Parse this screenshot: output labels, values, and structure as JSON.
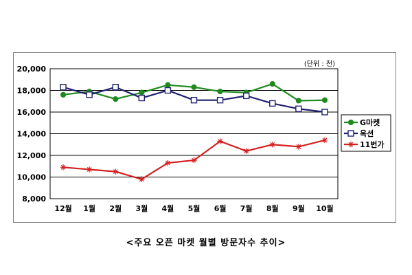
{
  "caption": "<주요 오픈 마켓 월별 방문자수 추이>",
  "chart_data": {
    "type": "line",
    "unit_note": "(단위 : 천)",
    "categories": [
      "12월",
      "1월",
      "2월",
      "3월",
      "4월",
      "5월",
      "6월",
      "7월",
      "8월",
      "9월",
      "10월"
    ],
    "ylim": [
      8000,
      20000
    ],
    "yticks": [
      8000,
      10000,
      12000,
      14000,
      16000,
      18000,
      20000
    ],
    "ytick_labels": [
      "8,000",
      "10,000",
      "12,000",
      "14,000",
      "16,000",
      "18,000",
      "20,000"
    ],
    "grid": true,
    "legend_position": "right",
    "series": [
      {
        "name": "G마켓",
        "color": "#1e8a1e",
        "marker": "filled-circle",
        "values": [
          17600,
          17900,
          17200,
          17800,
          18500,
          18300,
          17900,
          17800,
          18600,
          17050,
          17100
        ]
      },
      {
        "name": "옥션",
        "color": "#1f1f6e",
        "marker": "hollow-square",
        "values": [
          18300,
          17600,
          18300,
          17300,
          18000,
          17100,
          17100,
          17500,
          16800,
          16300,
          16000
        ]
      },
      {
        "name": "11번가",
        "color": "#d42020",
        "marker": "star",
        "values": [
          10900,
          10700,
          10500,
          9800,
          11300,
          11550,
          13300,
          12400,
          13000,
          12800,
          13400
        ]
      }
    ]
  }
}
